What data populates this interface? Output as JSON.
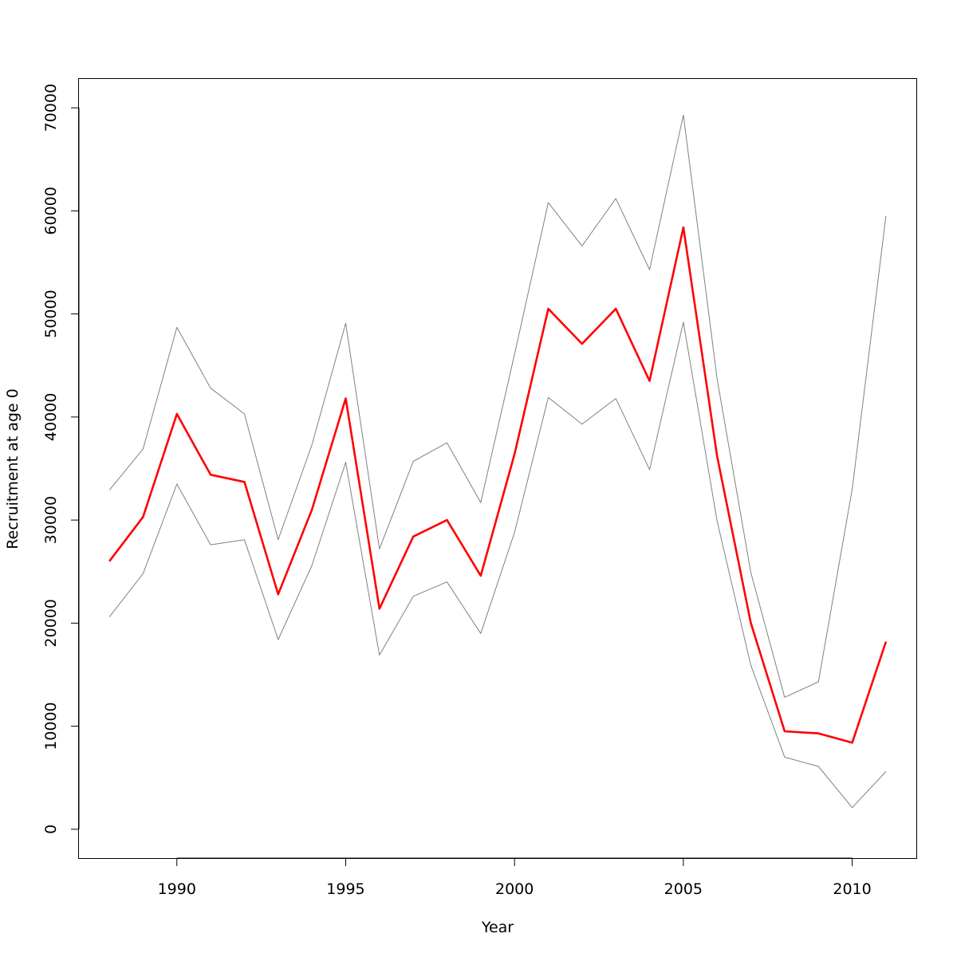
{
  "chart_data": {
    "type": "line",
    "title": "",
    "xlabel": "Year",
    "ylabel": "Recruitment at age 0",
    "xlim": [
      1987.1,
      2011.9
    ],
    "ylim": [
      -2800,
      72800
    ],
    "x_ticks": [
      1990,
      1995,
      2000,
      2005,
      2010
    ],
    "x_tick_labels": [
      "1990",
      "1995",
      "2000",
      "2005",
      "2010"
    ],
    "y_ticks": [
      0,
      10000,
      20000,
      30000,
      40000,
      50000,
      60000,
      70000
    ],
    "y_tick_labels": [
      "0",
      "10000",
      "20000",
      "30000",
      "40000",
      "50000",
      "60000",
      "70000"
    ],
    "grid": false,
    "legend": "none",
    "x": [
      1988,
      1989,
      1990,
      1991,
      1992,
      1993,
      1994,
      1995,
      1996,
      1997,
      1998,
      1999,
      2000,
      2001,
      2002,
      2003,
      2004,
      2005,
      2006,
      2007,
      2008,
      2009,
      2010,
      2011
    ],
    "series": [
      {
        "role": "estimate",
        "color": "#ff0000",
        "values": [
          26000,
          30300,
          40300,
          34400,
          33700,
          22800,
          31000,
          41800,
          21400,
          28400,
          30000,
          24600,
          36400,
          50500,
          47100,
          50500,
          43500,
          58400,
          36200,
          20000,
          9500,
          9300,
          8400,
          18200
        ]
      },
      {
        "role": "upper",
        "color": "#808080",
        "values": [
          32900,
          36900,
          48700,
          42800,
          40300,
          28100,
          37300,
          49100,
          27200,
          35700,
          37500,
          31700,
          46100,
          60800,
          56600,
          61200,
          54300,
          69300,
          43700,
          24900,
          12800,
          14300,
          33000,
          59500
        ]
      },
      {
        "role": "lower",
        "color": "#808080",
        "values": [
          20600,
          24800,
          33500,
          27600,
          28100,
          18400,
          25600,
          35600,
          16900,
          22600,
          24000,
          19000,
          28800,
          41900,
          39300,
          41800,
          34900,
          49200,
          29900,
          15900,
          7000,
          6100,
          2100,
          5600
        ]
      }
    ]
  }
}
